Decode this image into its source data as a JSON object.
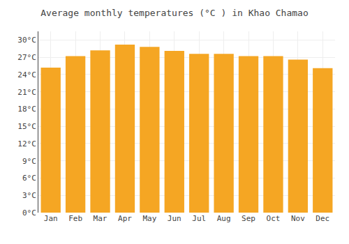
{
  "chart_data": {
    "type": "bar",
    "title": "Average monthly temperatures (°C ) in Khao Chamao",
    "categories": [
      "Jan",
      "Feb",
      "Mar",
      "Apr",
      "May",
      "Jun",
      "Jul",
      "Aug",
      "Sep",
      "Oct",
      "Nov",
      "Dec"
    ],
    "values": [
      25.2,
      27.2,
      28.2,
      29.2,
      28.8,
      28.1,
      27.6,
      27.6,
      27.2,
      27.2,
      26.6,
      25.1
    ],
    "color": "#F5A623",
    "ylim": [
      0,
      31.5
    ],
    "yticks": [
      {
        "value": 0,
        "label": "0°C"
      },
      {
        "value": 3,
        "label": "3°C"
      },
      {
        "value": 6,
        "label": "6°C"
      },
      {
        "value": 9,
        "label": "9°C"
      },
      {
        "value": 12,
        "label": "12°C"
      },
      {
        "value": 15,
        "label": "15°C"
      },
      {
        "value": 18,
        "label": "18°C"
      },
      {
        "value": 21,
        "label": "21°C"
      },
      {
        "value": 24,
        "label": "24°C"
      },
      {
        "value": 27,
        "label": "27°C"
      },
      {
        "value": 30,
        "label": "30°C"
      }
    ],
    "grid": true
  }
}
